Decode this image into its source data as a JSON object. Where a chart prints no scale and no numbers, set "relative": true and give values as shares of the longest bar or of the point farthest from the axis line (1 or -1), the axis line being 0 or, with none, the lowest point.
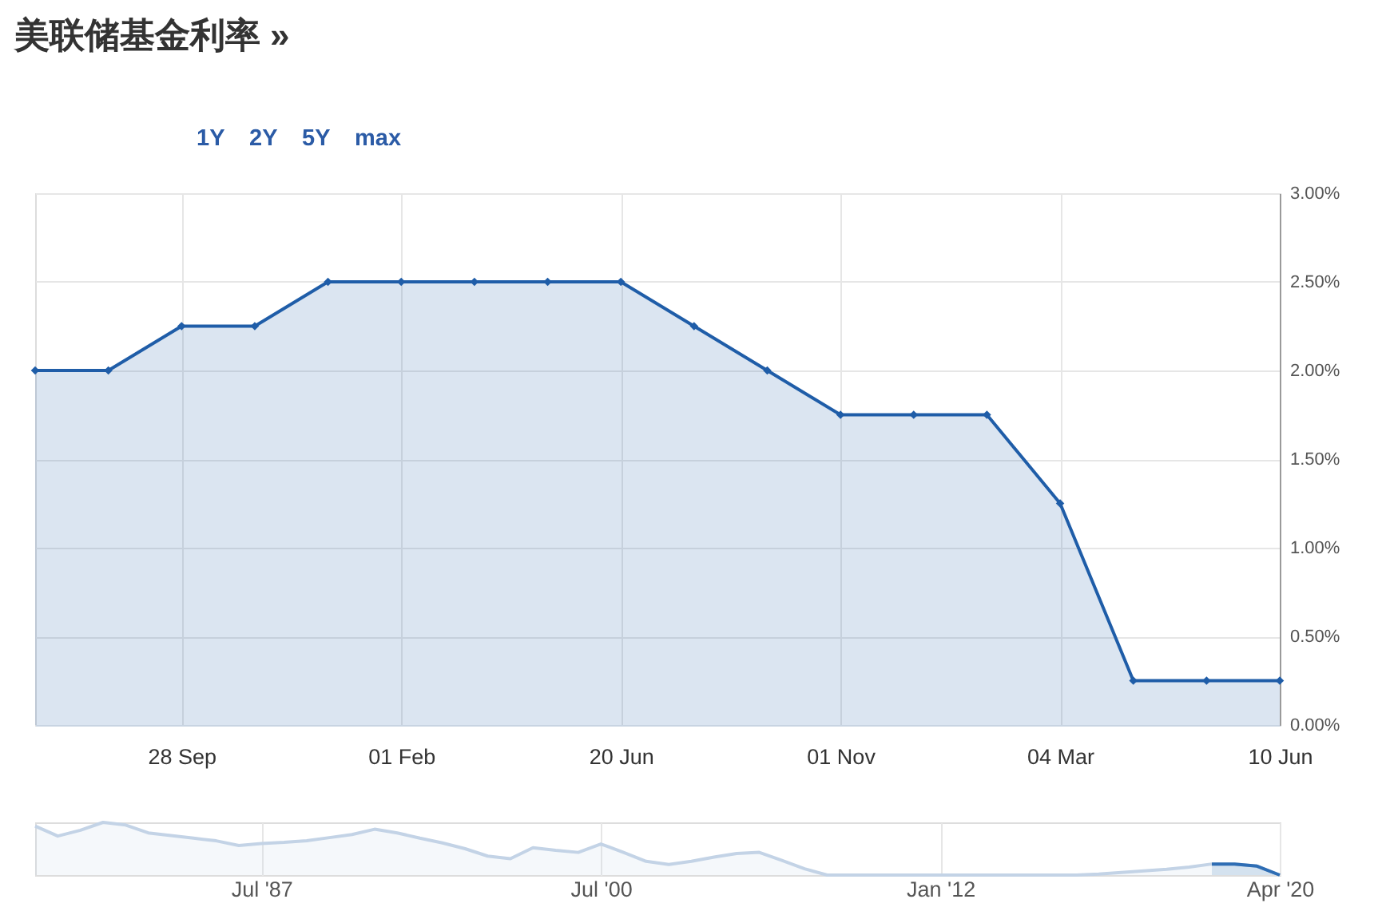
{
  "chart_data": [
    {
      "type": "area",
      "title": "美联储基金利率 »",
      "annotations": [
        "1Y",
        "2Y",
        "5Y",
        "max"
      ],
      "categories": [
        null,
        null,
        "28 Sep",
        null,
        null,
        "01 Feb",
        null,
        null,
        "20 Jun",
        null,
        null,
        "01 Nov",
        null,
        null,
        "04 Mar",
        null,
        null,
        "10 Jun"
      ],
      "series": [
        {
          "color": "#1f5da8",
          "values": [
            2.0,
            2.0,
            2.25,
            2.25,
            2.5,
            2.5,
            2.5,
            2.5,
            2.5,
            2.25,
            2.0,
            1.75,
            1.75,
            1.75,
            1.25,
            0.25,
            0.25,
            0.25
          ]
        }
      ],
      "ylim": [
        0,
        3
      ],
      "yticks": [
        {
          "value": 0,
          "label": "0.00%"
        },
        {
          "value": 0.5,
          "label": "0.50%"
        },
        {
          "value": 1,
          "label": "1.00%"
        },
        {
          "value": 1.5,
          "label": "1.50%"
        },
        {
          "value": 2,
          "label": "2.00%"
        },
        {
          "value": 2.5,
          "label": "2.50%"
        },
        {
          "value": 3,
          "label": "3.00%"
        }
      ],
      "grid": true,
      "marker": "diamond"
    },
    {
      "type": "area",
      "relative": true,
      "grid": "x",
      "categories": [
        null,
        null,
        null,
        null,
        null,
        null,
        null,
        null,
        null,
        null,
        "Jul '87",
        null,
        null,
        null,
        null,
        null,
        null,
        null,
        null,
        null,
        null,
        null,
        null,
        null,
        null,
        "Jul '00",
        null,
        null,
        null,
        null,
        null,
        null,
        null,
        null,
        null,
        null,
        null,
        null,
        null,
        null,
        "Jan '12",
        null,
        null,
        null,
        null,
        null,
        null,
        null,
        null,
        null,
        null,
        null,
        null,
        null,
        null,
        "Apr '20"
      ],
      "series": [
        {
          "color": "#c3d3e6",
          "values": [
            0.93,
            0.74,
            0.85,
            1,
            0.95,
            0.8,
            0.75,
            0.7,
            0.65,
            0.56,
            0.6,
            0.62,
            0.65,
            0.71,
            0.77,
            0.87,
            0.8,
            0.7,
            0.61,
            0.5,
            0.36,
            0.31,
            0.52,
            0.47,
            0.43,
            0.59,
            0.43,
            0.26,
            0.2,
            0.26,
            0.34,
            0.41,
            0.43,
            0.28,
            0.12,
            0,
            0,
            0,
            0,
            0,
            0,
            0,
            0,
            0,
            0,
            0,
            0,
            0.02,
            0.05,
            0.08,
            0.11,
            0.15,
            0.21,
            0.21,
            0.17,
            0
          ]
        },
        {
          "color": "#2e6db4",
          "values": [
            null,
            null,
            null,
            null,
            null,
            null,
            null,
            null,
            null,
            null,
            null,
            null,
            null,
            null,
            null,
            null,
            null,
            null,
            null,
            null,
            null,
            null,
            null,
            null,
            null,
            null,
            null,
            null,
            null,
            null,
            null,
            null,
            null,
            null,
            null,
            null,
            null,
            null,
            null,
            null,
            null,
            null,
            null,
            null,
            null,
            null,
            null,
            null,
            null,
            null,
            null,
            null,
            0.21,
            0.21,
            0.17,
            0
          ]
        }
      ]
    }
  ]
}
